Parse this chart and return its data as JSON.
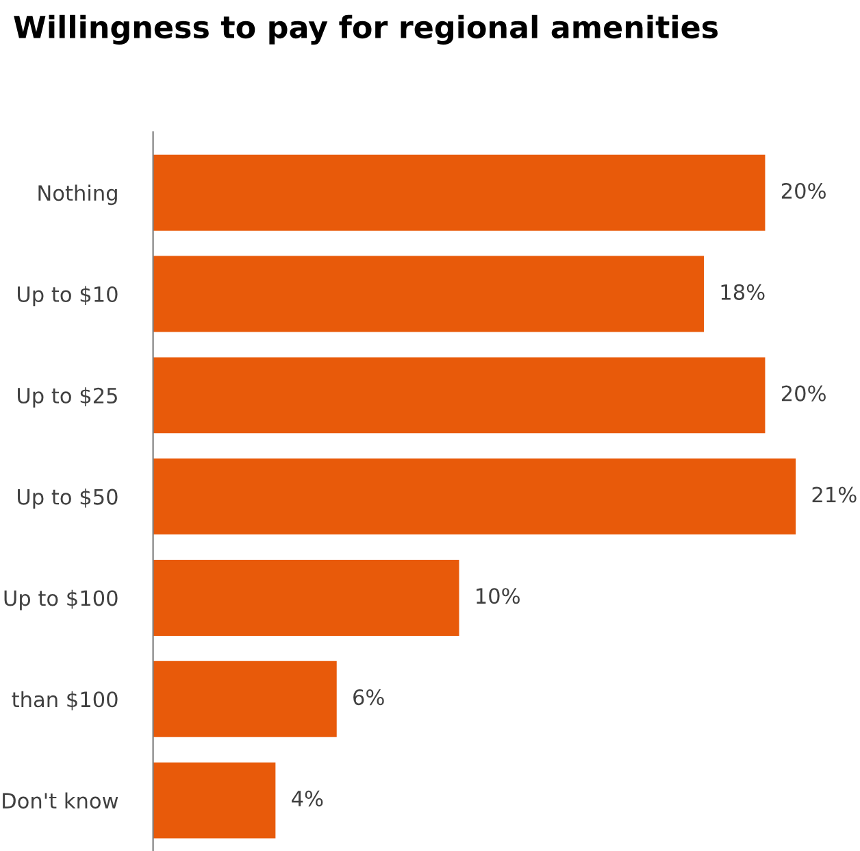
{
  "chart_data": {
    "type": "bar",
    "orientation": "horizontal",
    "title": "Willingness to pay for regional amenities",
    "categories": [
      "Nothing",
      "Up to $10",
      "Up to $25",
      "Up to $50",
      "Up to $100",
      "than $100",
      "Don't know"
    ],
    "values": [
      20,
      18,
      20,
      21,
      10,
      6,
      4
    ],
    "value_labels": [
      "20%",
      "18%",
      "20%",
      "21%",
      "10%",
      "6%",
      "4%"
    ],
    "color": "#e85a0a",
    "grid": false,
    "legend": false
  }
}
